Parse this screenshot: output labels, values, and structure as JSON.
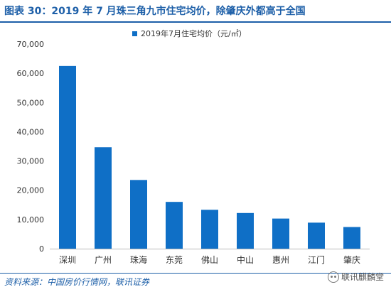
{
  "header": {
    "title": "图表 30：2019 年 7 月珠三角九市住宅均价，除肇庆外都高于全国"
  },
  "footer": {
    "source": "资料来源：中国房价行情网，联讯证券",
    "watermark": "联讯麒麟堂",
    "watermark_icon": "wechat-icon"
  },
  "colors": {
    "bar": "#0f6fc6",
    "accent": "#1d5fa8"
  },
  "chart_data": {
    "type": "bar",
    "categories": [
      "深圳",
      "广州",
      "珠海",
      "东莞",
      "佛山",
      "中山",
      "惠州",
      "江门",
      "肇庆"
    ],
    "series": [
      {
        "name": "2019年7月住宅均价（元/㎡）",
        "values": [
          62500,
          34700,
          23500,
          16000,
          13300,
          12200,
          10300,
          8900,
          7400
        ]
      }
    ],
    "ylim": [
      0,
      70000
    ],
    "yticks": [
      "0",
      "10,000",
      "20,000",
      "30,000",
      "40,000",
      "50,000",
      "60,000",
      "70,000"
    ],
    "ytick_values": [
      0,
      10000,
      20000,
      30000,
      40000,
      50000,
      60000,
      70000
    ],
    "grid": false,
    "legend": "top-center"
  }
}
